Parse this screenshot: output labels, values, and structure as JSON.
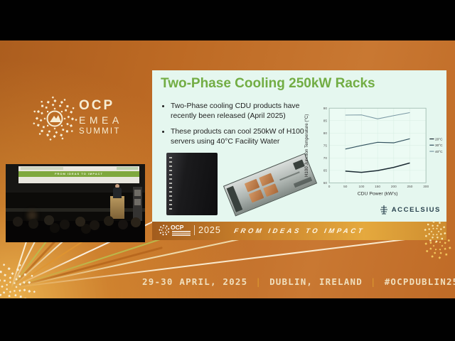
{
  "colors": {
    "background_orange": "#bd6a24",
    "black_bar": "#010101",
    "slide_background": "#e5f7ef",
    "title_green": "#72ad44",
    "accent_gold": "#dd9c30",
    "cream": "#f7edd3"
  },
  "event_logo": {
    "ocp": "OCP",
    "emea": "EMEA",
    "summit": "SUMMIT"
  },
  "slide": {
    "title": "Two-Phase Cooling 250kW Racks",
    "bullets": [
      "Two-Phase cooling CDU products have recently been released (April 2025)",
      "These products can cool 250kW of H100 servers using 40°C Facility Water"
    ],
    "accelsius_logo": "ACCELSIUS",
    "footer": {
      "ocp": "OCP",
      "year": "2025",
      "tagline": "FROM IDEAS TO IMPACT"
    }
  },
  "chart_data": {
    "type": "line",
    "title": "",
    "xlabel": "CDU Power (kW's)",
    "ylabel": "H100 Junction Temperature (°C)",
    "xlim": [
      0,
      300
    ],
    "ylim": [
      60,
      90
    ],
    "xticks": [
      0,
      50,
      100,
      150,
      200,
      250,
      300
    ],
    "yticks": [
      60,
      65,
      70,
      75,
      80,
      85,
      90
    ],
    "grid": true,
    "legend_position": "right",
    "x": [
      50,
      100,
      150,
      200,
      250
    ],
    "series": [
      {
        "name": "20°C",
        "color": "#1b2a33",
        "width": 1.5,
        "values": [
          64.7,
          64.2,
          64.9,
          66.2,
          68.0
        ]
      },
      {
        "name": "30°C",
        "color": "#33525f",
        "width": 1.1,
        "values": [
          73.6,
          75.0,
          76.3,
          76.1,
          77.7
        ]
      },
      {
        "name": "40°C",
        "color": "#7b99a4",
        "width": 1.0,
        "values": [
          87.2,
          87.3,
          85.7,
          87.0,
          88.2
        ]
      }
    ]
  },
  "stage_video": {
    "screen_banner": "FROM IDEAS TO IMPACT"
  },
  "event_footer": {
    "date": "29-30 APRIL, 2025",
    "separator": "|",
    "location": "DUBLIN, IRELAND",
    "hashtag": "#OCPDUBLIN25"
  }
}
